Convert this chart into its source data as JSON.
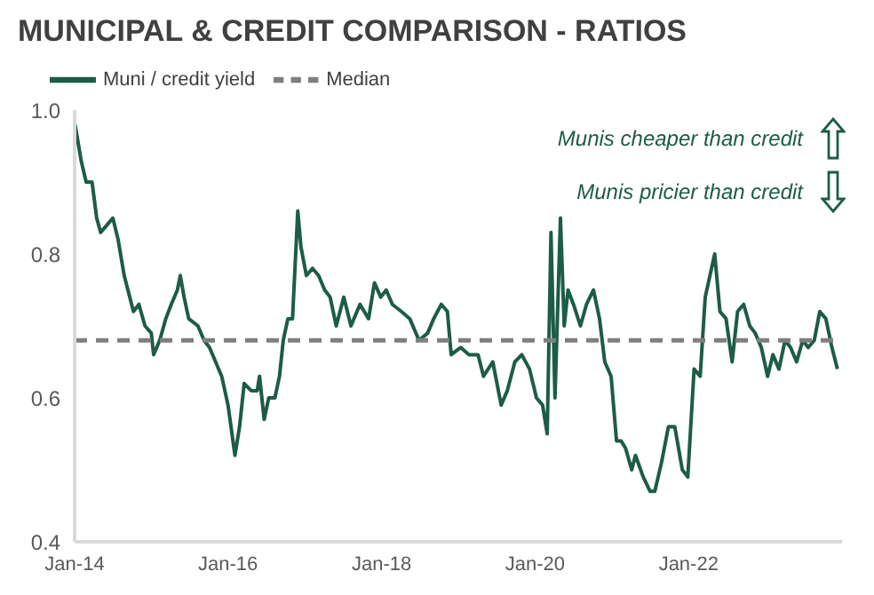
{
  "chart_data": {
    "type": "line",
    "title": "MUNICIPAL & CREDIT COMPARISON - RATIOS",
    "legend": "top left",
    "marker": "none",
    "annotations": [
      "Munis cheaper than credit",
      "Munis pricier than credit"
    ],
    "xlim": [
      "2014-01-01",
      "2024-01-01"
    ],
    "xticks": [
      {
        "value": "2014-01-01",
        "label": "Jan-14"
      },
      {
        "value": "2016-01-01",
        "label": "Jan-16"
      },
      {
        "value": "2018-01-01",
        "label": "Jan-18"
      },
      {
        "value": "2020-01-01",
        "label": "Jan-20"
      },
      {
        "value": "2022-01-01",
        "label": "Jan-22"
      }
    ],
    "ylim": [
      0.4,
      1.0
    ],
    "yticks": [
      0.4,
      0.6,
      0.8,
      {
        "value": 1.0,
        "label": "1.0"
      }
    ],
    "series": [
      {
        "name": "Muni / credit yield",
        "color": "#1d5c45",
        "line_style": "solid",
        "x": [
          "2014-01-03",
          "2014-02-01",
          "2014-02-25",
          "2014-03-25",
          "2014-04-16",
          "2014-05-05",
          "2014-06-03",
          "2014-07-02",
          "2014-07-27",
          "2014-08-25",
          "2014-10-08",
          "2014-11-03",
          "2014-12-02",
          "2015-01-01",
          "2015-01-12",
          "2015-02-10",
          "2015-03-11",
          "2015-04-06",
          "2015-05-05",
          "2015-05-19",
          "2015-06-06",
          "2015-06-28",
          "2015-08-11",
          "2015-09-09",
          "2015-10-05",
          "2015-11-03",
          "2015-12-02",
          "2016-01-01",
          "2016-02-03",
          "2016-02-25",
          "2016-03-18",
          "2016-04-20",
          "2016-05-19",
          "2016-05-30",
          "2016-06-21",
          "2016-07-13",
          "2016-08-11",
          "2016-09-02",
          "2016-09-20",
          "2016-10-12",
          "2016-11-03",
          "2016-11-28",
          "2016-12-13",
          "2017-01-08",
          "2017-02-06",
          "2017-03-07",
          "2017-04-05",
          "2017-05-01",
          "2017-05-30",
          "2017-07-05",
          "2017-08-08",
          "2017-09-20",
          "2017-10-31",
          "2017-11-28",
          "2017-12-28",
          "2018-01-23",
          "2018-02-21",
          "2018-04-05",
          "2018-05-15",
          "2018-06-28",
          "2018-08-08",
          "2018-09-06",
          "2018-10-12",
          "2018-11-10",
          "2018-11-28",
          "2019-01-12",
          "2019-02-21",
          "2019-04-05",
          "2019-05-01",
          "2019-06-14",
          "2019-07-24",
          "2019-08-22",
          "2019-09-27",
          "2019-10-30",
          "2019-12-06",
          "2020-01-08",
          "2020-02-06",
          "2020-02-28",
          "2020-03-17",
          "2020-04-05",
          "2020-05-01",
          "2020-05-19",
          "2020-06-06",
          "2020-07-02",
          "2020-08-04",
          "2020-09-02",
          "2020-10-05",
          "2020-11-03",
          "2020-11-28",
          "2020-12-28",
          "2021-01-23",
          "2021-02-14",
          "2021-03-07",
          "2021-04-05",
          "2021-04-23",
          "2021-05-30",
          "2021-07-02",
          "2021-07-24",
          "2021-08-25",
          "2021-09-27",
          "2021-10-27",
          "2021-12-02",
          "2021-12-28",
          "2022-01-27",
          "2022-02-25",
          "2022-03-21",
          "2022-05-05",
          "2022-05-30",
          "2022-06-28",
          "2022-07-27",
          "2022-08-22",
          "2022-09-20",
          "2022-10-19",
          "2022-11-14",
          "2022-12-13",
          "2023-01-12",
          "2023-02-06",
          "2023-03-07",
          "2023-04-05",
          "2023-05-01",
          "2023-05-30",
          "2023-06-28",
          "2023-07-24",
          "2023-08-22",
          "2023-09-17",
          "2023-10-16",
          "2023-11-14",
          "2023-12-10"
        ],
        "values": [
          0.98,
          0.93,
          0.9,
          0.9,
          0.85,
          0.83,
          0.84,
          0.85,
          0.82,
          0.77,
          0.72,
          0.73,
          0.7,
          0.69,
          0.66,
          0.68,
          0.71,
          0.73,
          0.75,
          0.77,
          0.74,
          0.71,
          0.7,
          0.68,
          0.67,
          0.65,
          0.63,
          0.59,
          0.52,
          0.56,
          0.62,
          0.61,
          0.61,
          0.63,
          0.57,
          0.6,
          0.6,
          0.63,
          0.68,
          0.71,
          0.71,
          0.86,
          0.81,
          0.77,
          0.78,
          0.77,
          0.75,
          0.74,
          0.7,
          0.74,
          0.7,
          0.73,
          0.71,
          0.76,
          0.74,
          0.75,
          0.73,
          0.72,
          0.71,
          0.68,
          0.69,
          0.71,
          0.73,
          0.72,
          0.66,
          0.67,
          0.66,
          0.66,
          0.63,
          0.65,
          0.59,
          0.61,
          0.65,
          0.66,
          0.64,
          0.6,
          0.59,
          0.55,
          0.83,
          0.6,
          0.85,
          0.7,
          0.75,
          0.73,
          0.7,
          0.73,
          0.75,
          0.71,
          0.65,
          0.63,
          0.54,
          0.54,
          0.53,
          0.5,
          0.52,
          0.49,
          0.47,
          0.47,
          0.51,
          0.56,
          0.56,
          0.5,
          0.49,
          0.64,
          0.63,
          0.74,
          0.8,
          0.72,
          0.71,
          0.65,
          0.72,
          0.73,
          0.7,
          0.69,
          0.67,
          0.63,
          0.66,
          0.64,
          0.68,
          0.67,
          0.65,
          0.68,
          0.67,
          0.68,
          0.72,
          0.71,
          0.67,
          0.64
        ]
      },
      {
        "name": "Median",
        "color": "#7f7f7f",
        "line_style": "dashed",
        "x": [
          "2014-01-01",
          "2023-12-10"
        ],
        "values": [
          0.68,
          0.68
        ]
      }
    ]
  }
}
